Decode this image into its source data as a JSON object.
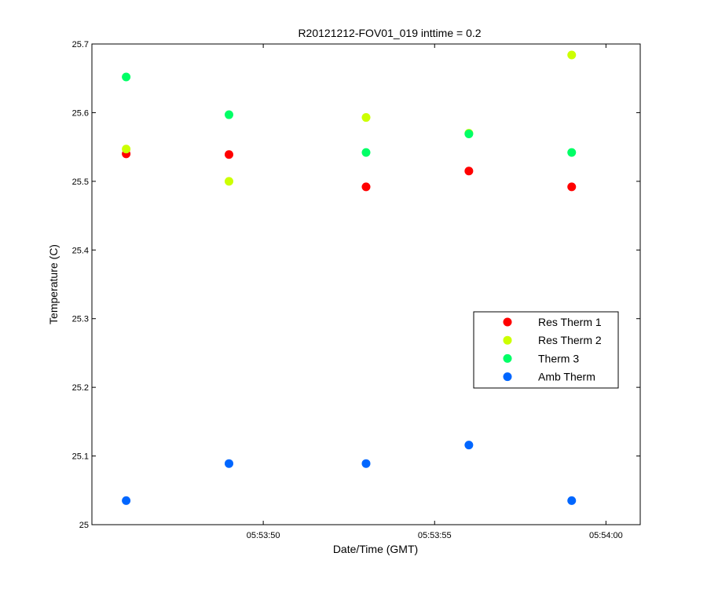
{
  "chart_data": {
    "type": "scatter",
    "title": "R20121212-FOV01_019 inttime = 0.2",
    "xlabel": "Date/Time (GMT)",
    "ylabel": "Temperature (C)",
    "x": [
      "05:53:46",
      "05:53:49",
      "05:53:53",
      "05:53:56",
      "05:53:59"
    ],
    "xlim": [
      "05:53:45",
      "05:54:01"
    ],
    "xticks": [
      "05:53:50",
      "05:53:55",
      "05:54:00"
    ],
    "ylim": [
      25,
      25.7
    ],
    "yticks": [
      "25",
      "25.1",
      "25.2",
      "25.3",
      "25.4",
      "25.5",
      "25.6",
      "25.7"
    ],
    "grid": false,
    "legend_position": "right",
    "series": [
      {
        "name": "Res Therm 1",
        "color": "#ff0000",
        "values": [
          25.54,
          25.539,
          25.492,
          25.515,
          25.492
        ]
      },
      {
        "name": "Res Therm 2",
        "color": "#ccff00",
        "values": [
          25.547,
          25.5,
          25.593,
          25.57,
          25.684
        ]
      },
      {
        "name": "Therm 3",
        "color": "#00ff66",
        "values": [
          25.652,
          25.597,
          25.542,
          25.569,
          25.542
        ]
      },
      {
        "name": "Amb Therm",
        "color": "#0066ff",
        "values": [
          25.035,
          25.089,
          25.089,
          25.116,
          25.035
        ]
      }
    ]
  }
}
